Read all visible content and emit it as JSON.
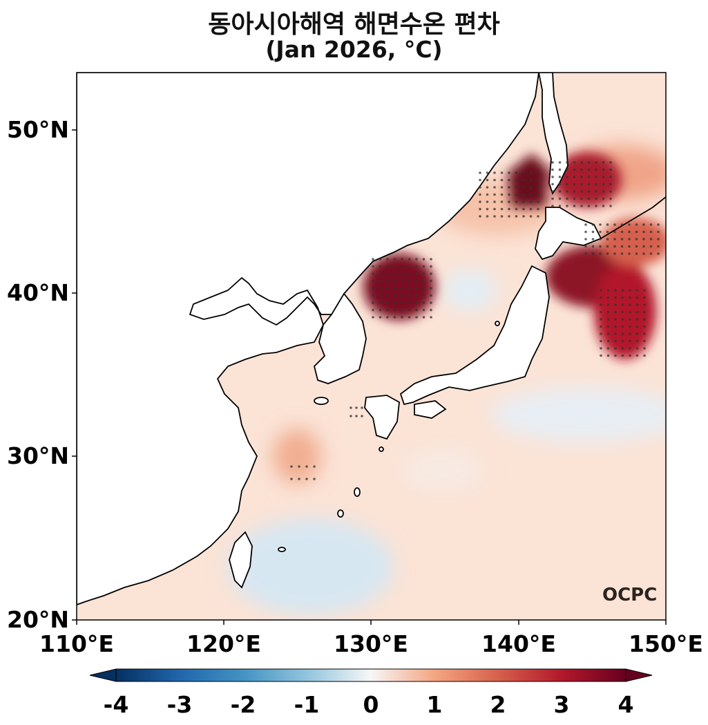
{
  "title": {
    "line1": "동아시아해역 해면수온 편차",
    "line2": "(Jan 2026, °C)"
  },
  "axes": {
    "y_labels": [
      "50°N",
      "40°N",
      "30°N",
      "20°N"
    ],
    "x_labels": [
      "110°E",
      "120°E",
      "130°E",
      "140°E",
      "150°E"
    ],
    "lon_range": [
      110,
      150
    ],
    "lat_range": [
      20,
      53.5
    ]
  },
  "colorbar": {
    "labels": [
      "-4",
      "-3",
      "-2",
      "-1",
      "0",
      "1",
      "2",
      "3",
      "4"
    ],
    "min": -4,
    "max": 4
  },
  "logo": "OCPC",
  "colors": {
    "strong_warm": "#6b0a1e",
    "warm": "#d6604d",
    "light_warm": "#fbd9c4",
    "neutral": "#f7f7f7",
    "light_cool": "#d6e7f2",
    "cool": "#4393c3",
    "strong_cool": "#053061"
  }
}
